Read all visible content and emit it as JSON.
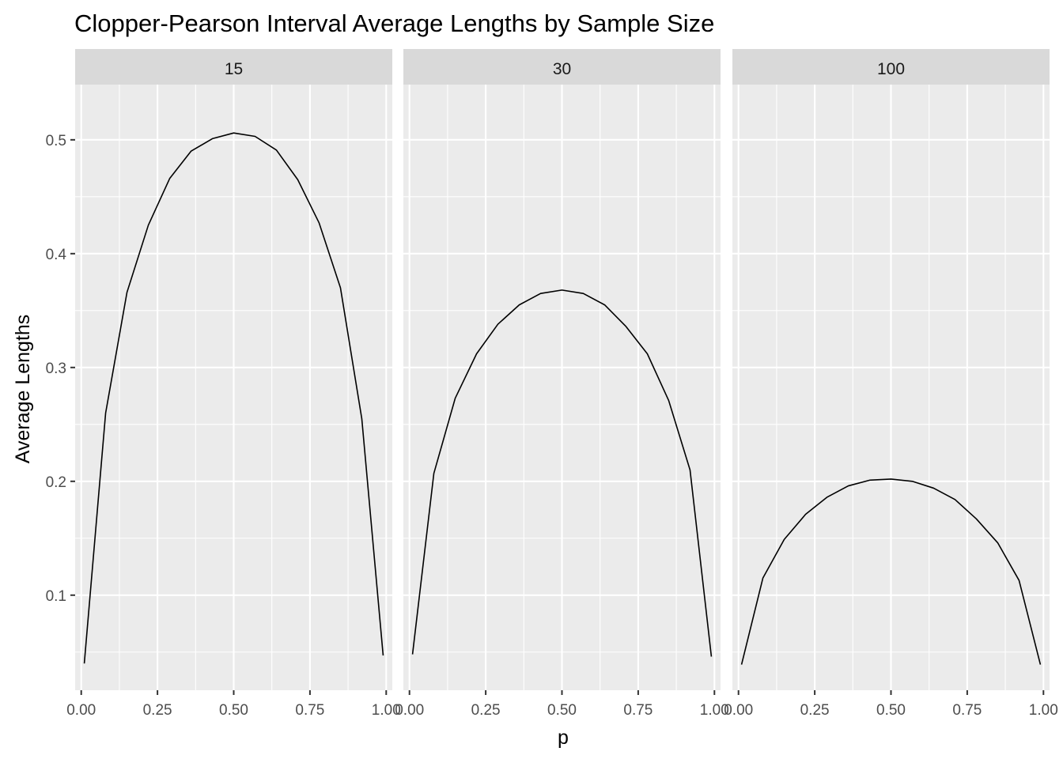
{
  "chart_data": {
    "type": "line",
    "title": "Clopper-Pearson Interval Average Lengths by Sample Size",
    "xlabel": "p",
    "ylabel": "Average Lengths",
    "xlim": [
      -0.02,
      1.02
    ],
    "ylim": [
      0.0165,
      0.5485
    ],
    "x_ticks": [
      0.0,
      0.25,
      0.5,
      0.75,
      1.0
    ],
    "x_tick_labels": [
      "0.00",
      "0.25",
      "0.50",
      "0.75",
      "1.00"
    ],
    "y_ticks": [
      0.1,
      0.2,
      0.3,
      0.4,
      0.5
    ],
    "y_tick_labels": [
      "0.1",
      "0.2",
      "0.3",
      "0.4",
      "0.5"
    ],
    "grid": true,
    "facets": [
      {
        "label": "15",
        "x": [
          0.01,
          0.08,
          0.15,
          0.22,
          0.29,
          0.36,
          0.43,
          0.5,
          0.57,
          0.64,
          0.71,
          0.78,
          0.85,
          0.92,
          0.99
        ],
        "y": [
          0.04,
          0.26,
          0.366,
          0.425,
          0.466,
          0.49,
          0.501,
          0.506,
          0.503,
          0.491,
          0.465,
          0.427,
          0.37,
          0.255,
          0.047
        ]
      },
      {
        "label": "30",
        "x": [
          0.01,
          0.08,
          0.15,
          0.22,
          0.29,
          0.36,
          0.43,
          0.5,
          0.57,
          0.64,
          0.71,
          0.78,
          0.85,
          0.92,
          0.99
        ],
        "y": [
          0.048,
          0.207,
          0.273,
          0.312,
          0.338,
          0.355,
          0.365,
          0.368,
          0.365,
          0.355,
          0.336,
          0.312,
          0.271,
          0.21,
          0.046
        ]
      },
      {
        "label": "100",
        "x": [
          0.01,
          0.08,
          0.15,
          0.22,
          0.29,
          0.36,
          0.43,
          0.5,
          0.57,
          0.64,
          0.71,
          0.78,
          0.85,
          0.92,
          0.99
        ],
        "y": [
          0.039,
          0.115,
          0.149,
          0.171,
          0.186,
          0.196,
          0.201,
          0.202,
          0.2,
          0.194,
          0.184,
          0.167,
          0.146,
          0.113,
          0.039
        ]
      }
    ]
  }
}
